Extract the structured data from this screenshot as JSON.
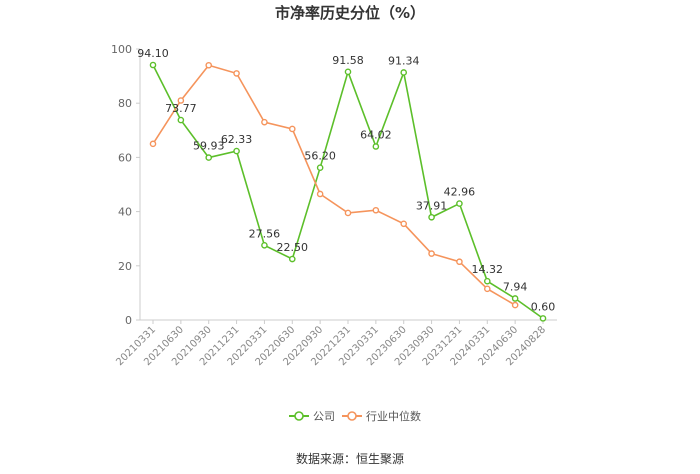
{
  "chart_data": {
    "type": "line",
    "title": "市净率历史分位（%）",
    "source": "数据来源：恒生聚源",
    "categories": [
      "20210331",
      "20210630",
      "20210930",
      "20211231",
      "20220331",
      "20220630",
      "20220930",
      "20221231",
      "20230331",
      "20230630",
      "20230930",
      "20231231",
      "20240331",
      "20240630",
      "20240828"
    ],
    "ylim": [
      0,
      100
    ],
    "yticks": [
      0,
      20,
      40,
      60,
      80,
      100
    ],
    "grid": false,
    "legend_position": "bottom",
    "series": [
      {
        "name": "公司",
        "color": "#5cbf2a",
        "values": [
          94.1,
          73.77,
          59.93,
          62.33,
          27.56,
          22.5,
          56.2,
          91.58,
          64.02,
          91.34,
          37.91,
          42.96,
          14.32,
          7.94,
          0.6
        ],
        "labels": [
          "94.10",
          "73.77",
          "59.93",
          "62.33",
          "27.56",
          "22.50",
          "56.20",
          "91.58",
          "64.02",
          "91.34",
          "37.91",
          "42.96",
          "14.32",
          "7.94",
          "0.60"
        ]
      },
      {
        "name": "行业中位数",
        "color": "#f5945c",
        "values": [
          65,
          81,
          94,
          91,
          73,
          70.5,
          46.5,
          39.5,
          40.5,
          35.5,
          24.5,
          21.5,
          11.5,
          5.5,
          null
        ]
      }
    ]
  }
}
